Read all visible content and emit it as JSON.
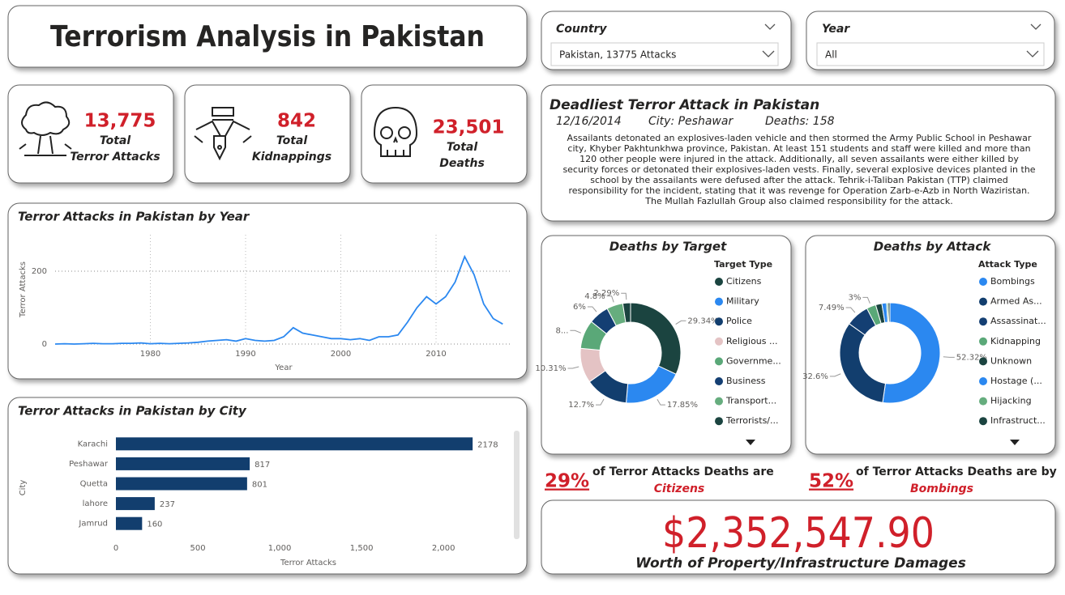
{
  "title": "Terrorism Analysis in Pakistan",
  "slicers": [
    {
      "label": "Country",
      "value": "Pakistan, 13775 Attacks"
    },
    {
      "label": "Year",
      "value": "All"
    }
  ],
  "kpis": [
    {
      "value": "13,775",
      "label": [
        "Total",
        "Terror Attacks"
      ]
    },
    {
      "value": "842",
      "label": [
        "Total",
        "Kidnappings"
      ]
    },
    {
      "value": "23,501",
      "label": [
        "Total",
        "Deaths"
      ]
    }
  ],
  "deadliest": {
    "title": "Deadliest Terror Attack in Pakistan",
    "date": "12/16/2014",
    "city": "City: Peshawar",
    "deaths": "Deaths: 158",
    "description": "Assailants detonated an explosives-laden vehicle and then stormed the Army Public School in Peshawar city, Khyber Pakhtunkhwa province, Pakistan. At least 151 students and staff were killed and more than 120 other people were injured in the attack. Additionally, all seven assailants were either killed by security forces or detonated their explosives-laden vests. Finally, several explosive devices planted in the school by the assailants were defused after the attack. Tehrik-i-Taliban Pakistan (TTP) claimed responsibility for the incident, stating that it was revenge for Operation Zarb-e-Azb in North Waziristan. The Mullah Fazlullah Group also claimed responsibility for the attack."
  },
  "highlights": [
    {
      "pct": "29%",
      "text": "of Terror Attacks Deaths are",
      "target": "Citizens"
    },
    {
      "pct": "52%",
      "text": "of Terror Attacks Deaths are by",
      "target": "Bombings"
    }
  ],
  "damage": {
    "value": "$2,352,547.90",
    "label": "Worth of Property/Infrastructure Damages"
  },
  "chart_data": [
    {
      "type": "line",
      "title": "Terror Attacks in Pakistan by Year",
      "xlabel": "Year",
      "ylabel": "Terror Attacks",
      "color": "#2b88f0",
      "grid": true,
      "x": [
        1970,
        1971,
        1972,
        1973,
        1974,
        1975,
        1976,
        1977,
        1978,
        1979,
        1980,
        1981,
        1982,
        1983,
        1984,
        1985,
        1986,
        1987,
        1988,
        1989,
        1990,
        1991,
        1992,
        1993,
        1994,
        1995,
        1996,
        1997,
        1998,
        1999,
        2000,
        2001,
        2002,
        2003,
        2004,
        2005,
        2006,
        2007,
        2008,
        2009,
        2010,
        2011,
        2012,
        2013,
        2014,
        2015,
        2016,
        2017
      ],
      "values": [
        0,
        1,
        0,
        1,
        2,
        1,
        1,
        2,
        2,
        3,
        1,
        2,
        1,
        2,
        3,
        5,
        8,
        10,
        12,
        8,
        15,
        10,
        8,
        10,
        20,
        45,
        30,
        25,
        20,
        15,
        15,
        12,
        15,
        10,
        20,
        20,
        25,
        60,
        100,
        130,
        110,
        130,
        170,
        240,
        190,
        110,
        70,
        55
      ],
      "xlim": [
        1970,
        2018
      ],
      "xticks": [
        1980,
        1990,
        2000,
        2010
      ],
      "ylim": [
        0,
        300
      ],
      "yticks": [
        0,
        200
      ]
    },
    {
      "type": "bar",
      "horizontal": true,
      "title": "Terror Attacks in Pakistan by City",
      "xlabel": "Terror Attacks",
      "ylabel": "City",
      "color": "#123e6e",
      "categories": [
        "Karachi",
        "Peshawar",
        "Quetta",
        "lahore",
        "Jamrud"
      ],
      "values": [
        2178,
        817,
        801,
        237,
        160
      ],
      "xlim": [
        0,
        2400
      ],
      "xticks": [
        0,
        500,
        {
          "value": 1000,
          "label": "1,000"
        },
        {
          "value": 1500,
          "label": "1,500"
        },
        {
          "value": 2000,
          "label": "2,000"
        }
      ]
    },
    {
      "type": "pie",
      "donut": true,
      "title": "Deaths by Target",
      "legend_title": "Target Type",
      "categories": [
        "Citizens",
        "Military",
        "Police",
        "Religious ...",
        "Governme...",
        "Business",
        "Transport...",
        "Terrorists/..."
      ],
      "values": [
        29.34,
        17.85,
        12.7,
        10.31,
        8.5,
        6,
        4.8,
        2.29
      ],
      "value_labels": [
        "29.34%",
        "17.85%",
        "12.7%",
        "10.31%",
        "8...",
        "6%",
        "4.8%",
        "2.29%"
      ],
      "colors": [
        "#1b4440",
        "#2b88f0",
        "#123e6e",
        "#e4c3c4",
        "#5aa878",
        "#143f73",
        "#66ad7e",
        "#1b4440"
      ]
    },
    {
      "type": "pie",
      "donut": true,
      "title": "Deaths by Attack",
      "legend_title": "Attack Type",
      "categories": [
        "Bombings",
        "Armed As...",
        "Assassinat...",
        "Kidnapping",
        "Unknown",
        "Hostage (...",
        "Hijacking",
        "Infrastruct..."
      ],
      "values": [
        52.32,
        32.6,
        7.49,
        3,
        2,
        1.5,
        0.5,
        0.59
      ],
      "value_labels": [
        "52.32%",
        "32.6%",
        "7.49%",
        "3%",
        null,
        null,
        null,
        null
      ],
      "colors": [
        "#2b88f0",
        "#123e6e",
        "#143f73",
        "#5aa878",
        "#1b4440",
        "#2b88f0",
        "#66ad7e",
        "#1b4440"
      ]
    }
  ]
}
